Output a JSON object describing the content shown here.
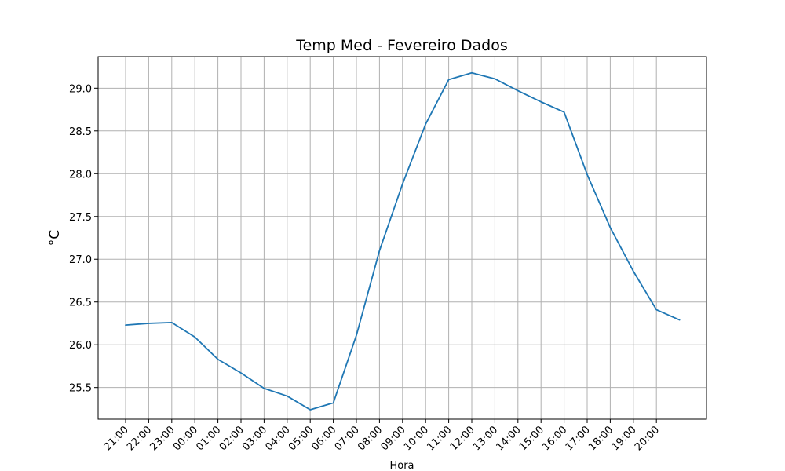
{
  "chart_data": {
    "type": "line",
    "title": "Temp Med - Fevereiro Dados",
    "xlabel": "Hora",
    "ylabel": "°C",
    "x_tick_labels": [
      "21:00",
      "22:00",
      "23:00",
      "00:00",
      "01:00",
      "02:00",
      "03:00",
      "04:00",
      "05:00",
      "06:00",
      "07:00",
      "08:00",
      "09:00",
      "10:00",
      "11:00",
      "12:00",
      "13:00",
      "14:00",
      "15:00",
      "16:00",
      "17:00",
      "18:00",
      "19:00",
      "20:00"
    ],
    "y_ticks": [
      25.5,
      26.0,
      26.5,
      27.0,
      27.5,
      28.0,
      28.5,
      29.0
    ],
    "ylim": [
      25.13,
      29.37
    ],
    "grid": true,
    "legend": "none",
    "series": [
      {
        "color": "#1f77b4",
        "values": [
          26.23,
          26.25,
          26.26,
          26.09,
          25.83,
          25.67,
          25.49,
          25.4,
          25.24,
          25.32,
          26.11,
          27.1,
          27.88,
          28.58,
          29.1,
          29.18,
          29.11,
          28.97,
          28.84,
          28.72,
          27.99,
          27.37,
          26.86,
          26.41,
          26.29
        ]
      }
    ]
  }
}
